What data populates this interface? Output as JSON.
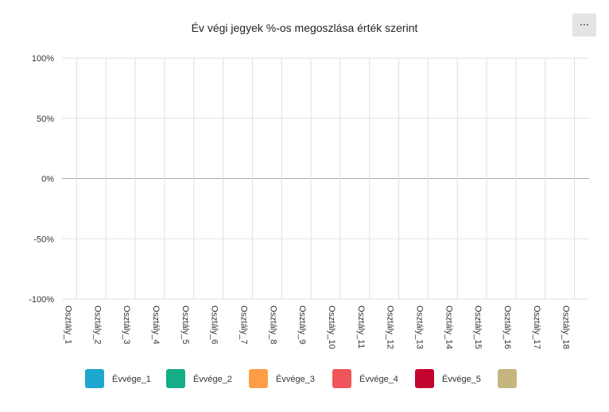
{
  "chart_data": {
    "type": "bar",
    "stacked": true,
    "title": "Év végi jegyek %-os megoszlása érték szerint",
    "categories": [
      "Osztály_1",
      "Osztály_2",
      "Osztály_3",
      "Osztály_4",
      "Osztály_5",
      "Osztály_6",
      "Osztály_7",
      "Osztály_8",
      "Osztály_9",
      "Osztály_10",
      "Osztály_11",
      "Osztály_12",
      "Osztály_13",
      "Osztály_14",
      "Osztály_15",
      "Osztály_16",
      "Osztály_17",
      "Osztály_18"
    ],
    "series": [
      {
        "name": "Évvége_1",
        "color": "#1fa7d0",
        "values": [
          null,
          null,
          null,
          null,
          null,
          null,
          null,
          null,
          null,
          null,
          null,
          null,
          null,
          null,
          null,
          null,
          null,
          null
        ]
      },
      {
        "name": "Évvége_2",
        "color": "#15ad86",
        "values": [
          null,
          null,
          null,
          null,
          null,
          null,
          null,
          null,
          null,
          null,
          null,
          null,
          null,
          null,
          null,
          null,
          null,
          null
        ]
      },
      {
        "name": "Évvége_3",
        "color": "#fd9e46",
        "values": [
          null,
          null,
          null,
          null,
          null,
          null,
          null,
          null,
          null,
          null,
          null,
          null,
          null,
          null,
          null,
          null,
          null,
          null
        ]
      },
      {
        "name": "Évvége_4",
        "color": "#f05559",
        "values": [
          null,
          null,
          null,
          null,
          null,
          null,
          null,
          null,
          null,
          null,
          null,
          null,
          null,
          null,
          null,
          null,
          null,
          null
        ]
      },
      {
        "name": "Évvége_5",
        "color": "#c2042f",
        "values": [
          null,
          null,
          null,
          null,
          null,
          null,
          null,
          null,
          null,
          null,
          null,
          null,
          null,
          null,
          null,
          null,
          null,
          null
        ]
      },
      {
        "color": "#c5b67f",
        "values": [
          null,
          null,
          null,
          null,
          null,
          null,
          null,
          null,
          null,
          null,
          null,
          null,
          null,
          null,
          null,
          null,
          null,
          null
        ]
      }
    ],
    "ylim": [
      -100,
      100
    ],
    "yticks": [
      {
        "value": -100,
        "label": "-100%"
      },
      {
        "value": -50,
        "label": "-50%"
      },
      {
        "value": 0,
        "label": "0%"
      },
      {
        "value": 50,
        "label": "50%"
      },
      {
        "value": 100,
        "label": "100%"
      }
    ],
    "grid": true,
    "legend": "bottom"
  }
}
